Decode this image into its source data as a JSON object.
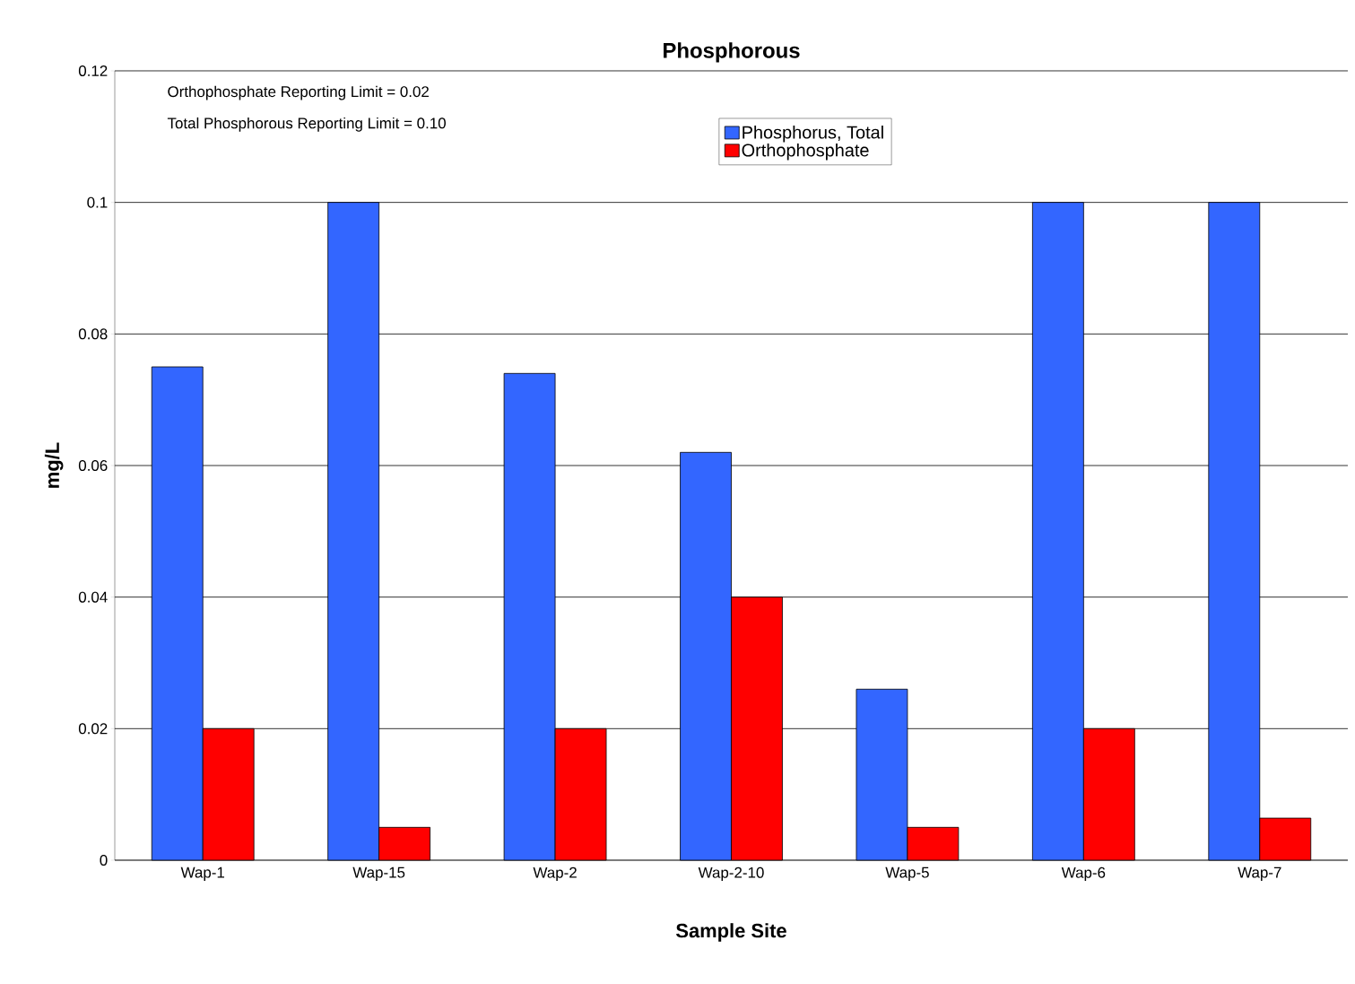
{
  "chart_data": {
    "type": "bar",
    "title": "Phosphorous",
    "xlabel": "Sample Site",
    "ylabel": "mg/L",
    "categories": [
      "Wap-1",
      "Wap-15",
      "Wap-2",
      "Wap-2-10",
      "Wap-5",
      "Wap-6",
      "Wap-7"
    ],
    "series": [
      {
        "name": "Phosphorus, Total",
        "color": "#3366ff",
        "values": [
          0.075,
          0.1,
          0.074,
          0.062,
          0.026,
          0.1,
          0.1
        ]
      },
      {
        "name": "Orthophosphate",
        "color": "#ff0000",
        "values": [
          0.02,
          0.005,
          0.02,
          0.04,
          0.005,
          0.02,
          0.0064
        ]
      }
    ],
    "ylim": [
      0,
      0.12
    ],
    "yticks": [
      0,
      0.02,
      0.04,
      0.06,
      0.08,
      0.1,
      0.12
    ],
    "grid": "y",
    "legend": "top",
    "annotations": [
      "Orthophosphate Reporting Limit = 0.02",
      "Total Phosphorous Reporting Limit = 0.10"
    ]
  }
}
